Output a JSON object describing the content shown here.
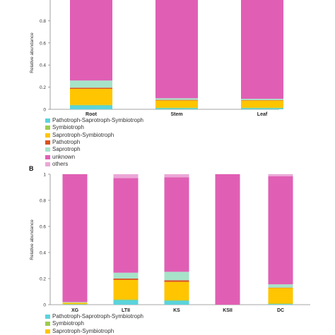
{
  "colors": {
    "Pathotroph-Saprotroph-Symbiotroph": "#5bd3dc",
    "Symbiotroph": "#9ccc4e",
    "Saprotroph-Symbiotroph": "#ffc500",
    "Pathotroph": "#d9531e",
    "Saprotroph": "#a6e3c8",
    "unknown": "#e05fb4",
    "others": "#eba7d6"
  },
  "chart_data": [
    {
      "type": "bar",
      "stacked": true,
      "panel_label": "",
      "ylabel": "Relative abundance",
      "ylim": [
        0,
        1
      ],
      "yticks_visible": [
        "0",
        "0.2",
        "0.4",
        "0.6",
        "0.8"
      ],
      "categories": [
        "Root",
        "Stem",
        "Leaf"
      ],
      "series": [
        {
          "name": "Pathotroph-Saprotroph-Symbiotroph",
          "values": [
            0.035,
            0.01,
            0.01
          ]
        },
        {
          "name": "Symbiotroph",
          "values": [
            0.005,
            0.005,
            0.005
          ]
        },
        {
          "name": "Saprotroph-Symbiotroph",
          "values": [
            0.145,
            0.065,
            0.065
          ]
        },
        {
          "name": "Pathotroph",
          "values": [
            0.01,
            0.005,
            0.003
          ]
        },
        {
          "name": "Saprotroph",
          "values": [
            0.065,
            0.015,
            0.012
          ]
        },
        {
          "name": "unknown",
          "values": [
            0.74,
            0.9,
            0.905
          ]
        },
        {
          "name": "others",
          "values": [
            0.0,
            0.0,
            0.0
          ]
        }
      ],
      "legend": [
        "Pathotroph-Saprotroph-Symbiotroph",
        "Symbiotroph",
        "Saprotroph-Symbiotroph",
        "Pathotroph",
        "Saprotroph",
        "unknown",
        "others"
      ]
    },
    {
      "type": "bar",
      "stacked": true,
      "panel_label": "B",
      "ylabel": "Relative abundance",
      "ylim": [
        0,
        1
      ],
      "yticks_visible": [
        "0",
        "0.2",
        "0.4",
        "0.6",
        "0.8",
        "1"
      ],
      "categories": [
        "XG",
        "LTII",
        "KS",
        "KSII",
        "DC"
      ],
      "series": [
        {
          "name": "Pathotroph-Saprotroph-Symbiotroph",
          "values": [
            0.002,
            0.035,
            0.03,
            0.0,
            0.005
          ]
        },
        {
          "name": "Symbiotroph",
          "values": [
            0.003,
            0.005,
            0.005,
            0.0,
            0.003
          ]
        },
        {
          "name": "Saprotroph-Symbiotroph",
          "values": [
            0.01,
            0.15,
            0.14,
            0.0,
            0.12
          ]
        },
        {
          "name": "Pathotroph",
          "values": [
            0.0,
            0.01,
            0.012,
            0.0,
            0.003
          ]
        },
        {
          "name": "Saprotroph",
          "values": [
            0.005,
            0.045,
            0.065,
            0.0,
            0.025
          ]
        },
        {
          "name": "unknown",
          "values": [
            0.98,
            0.725,
            0.725,
            1.0,
            0.829
          ]
        },
        {
          "name": "others",
          "values": [
            0.0,
            0.03,
            0.023,
            0.0,
            0.015
          ]
        }
      ],
      "legend": [
        "Pathotroph-Saprotroph-Symbiotroph",
        "Symbiotroph",
        "Saprotroph-Symbiotroph"
      ]
    }
  ]
}
